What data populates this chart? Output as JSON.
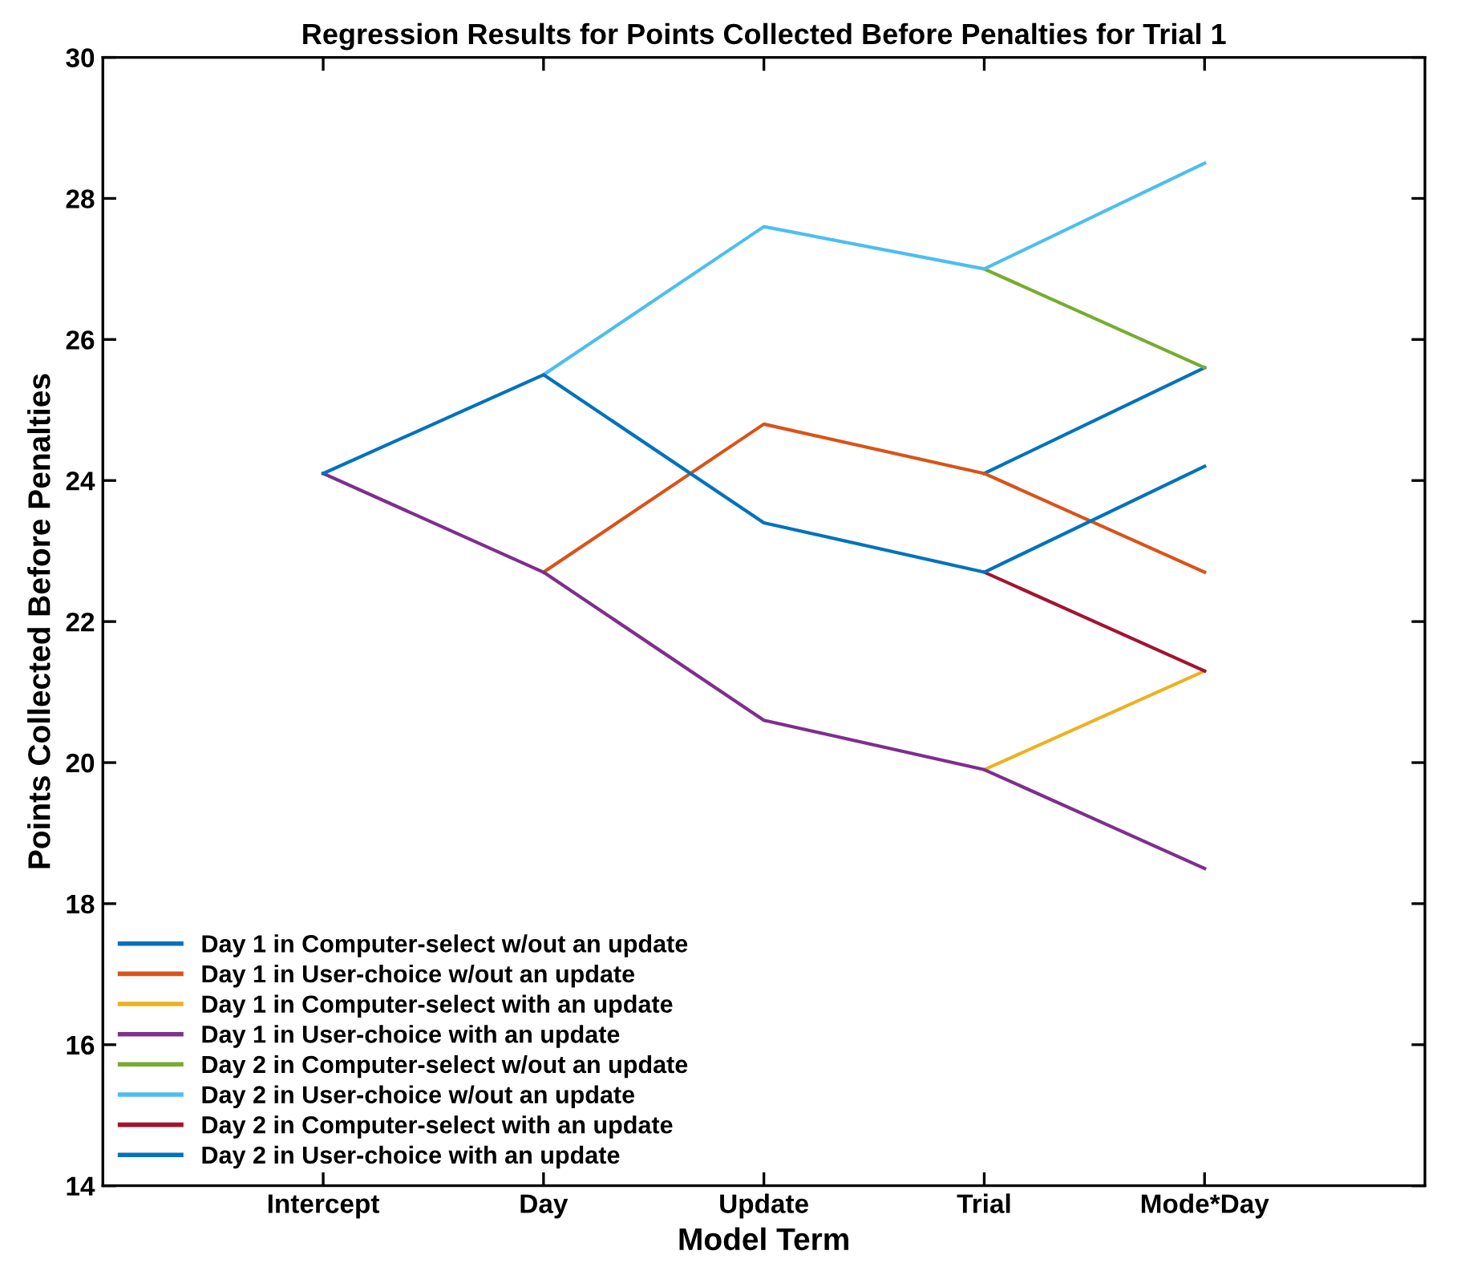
{
  "chart_data": {
    "type": "line",
    "title": "Regression Results for Points Collected Before Penalties for Trial 1",
    "xlabel": "Model Term",
    "ylabel": "Points Collected Before Penalties",
    "categories": [
      "Intercept",
      "Day",
      "Update",
      "Trial",
      "Mode*Day"
    ],
    "ylim": [
      14,
      30
    ],
    "yticks": [
      14,
      16,
      18,
      20,
      22,
      24,
      26,
      28,
      30
    ],
    "grid": false,
    "legend": "bottom left",
    "marker": "none",
    "line_style": "solid",
    "series": [
      {
        "name": "Day 1 in Computer-select w/out an update",
        "color": "#0072bd",
        "values": [
          null,
          null,
          null,
          24.1,
          25.6
        ]
      },
      {
        "name": "Day 1 in User-choice w/out an update",
        "color": "#d95319",
        "values": [
          null,
          22.7,
          24.8,
          24.1,
          22.7
        ]
      },
      {
        "name": "Day 1 in Computer-select with an update",
        "color": "#edb120",
        "values": [
          null,
          null,
          null,
          19.9,
          21.3
        ]
      },
      {
        "name": "Day 1 in User-choice with an update",
        "color": "#7e2f8e",
        "values": [
          24.1,
          22.7,
          20.6,
          19.9,
          18.5
        ]
      },
      {
        "name": "Day 2 in Computer-select w/out an update",
        "color": "#77ac30",
        "values": [
          null,
          null,
          null,
          27.0,
          25.6
        ]
      },
      {
        "name": "Day 2 in User-choice w/out an update",
        "color": "#4dbeee",
        "values": [
          null,
          25.5,
          27.6,
          27.0,
          28.5
        ]
      },
      {
        "name": "Day 2 in Computer-select with an update",
        "color": "#a2142f",
        "values": [
          null,
          null,
          null,
          22.7,
          21.3
        ]
      },
      {
        "name": "Day 2 in User-choice with an update",
        "color": "#0072bd",
        "values": [
          24.1,
          25.5,
          23.4,
          22.7,
          24.2
        ]
      }
    ]
  }
}
